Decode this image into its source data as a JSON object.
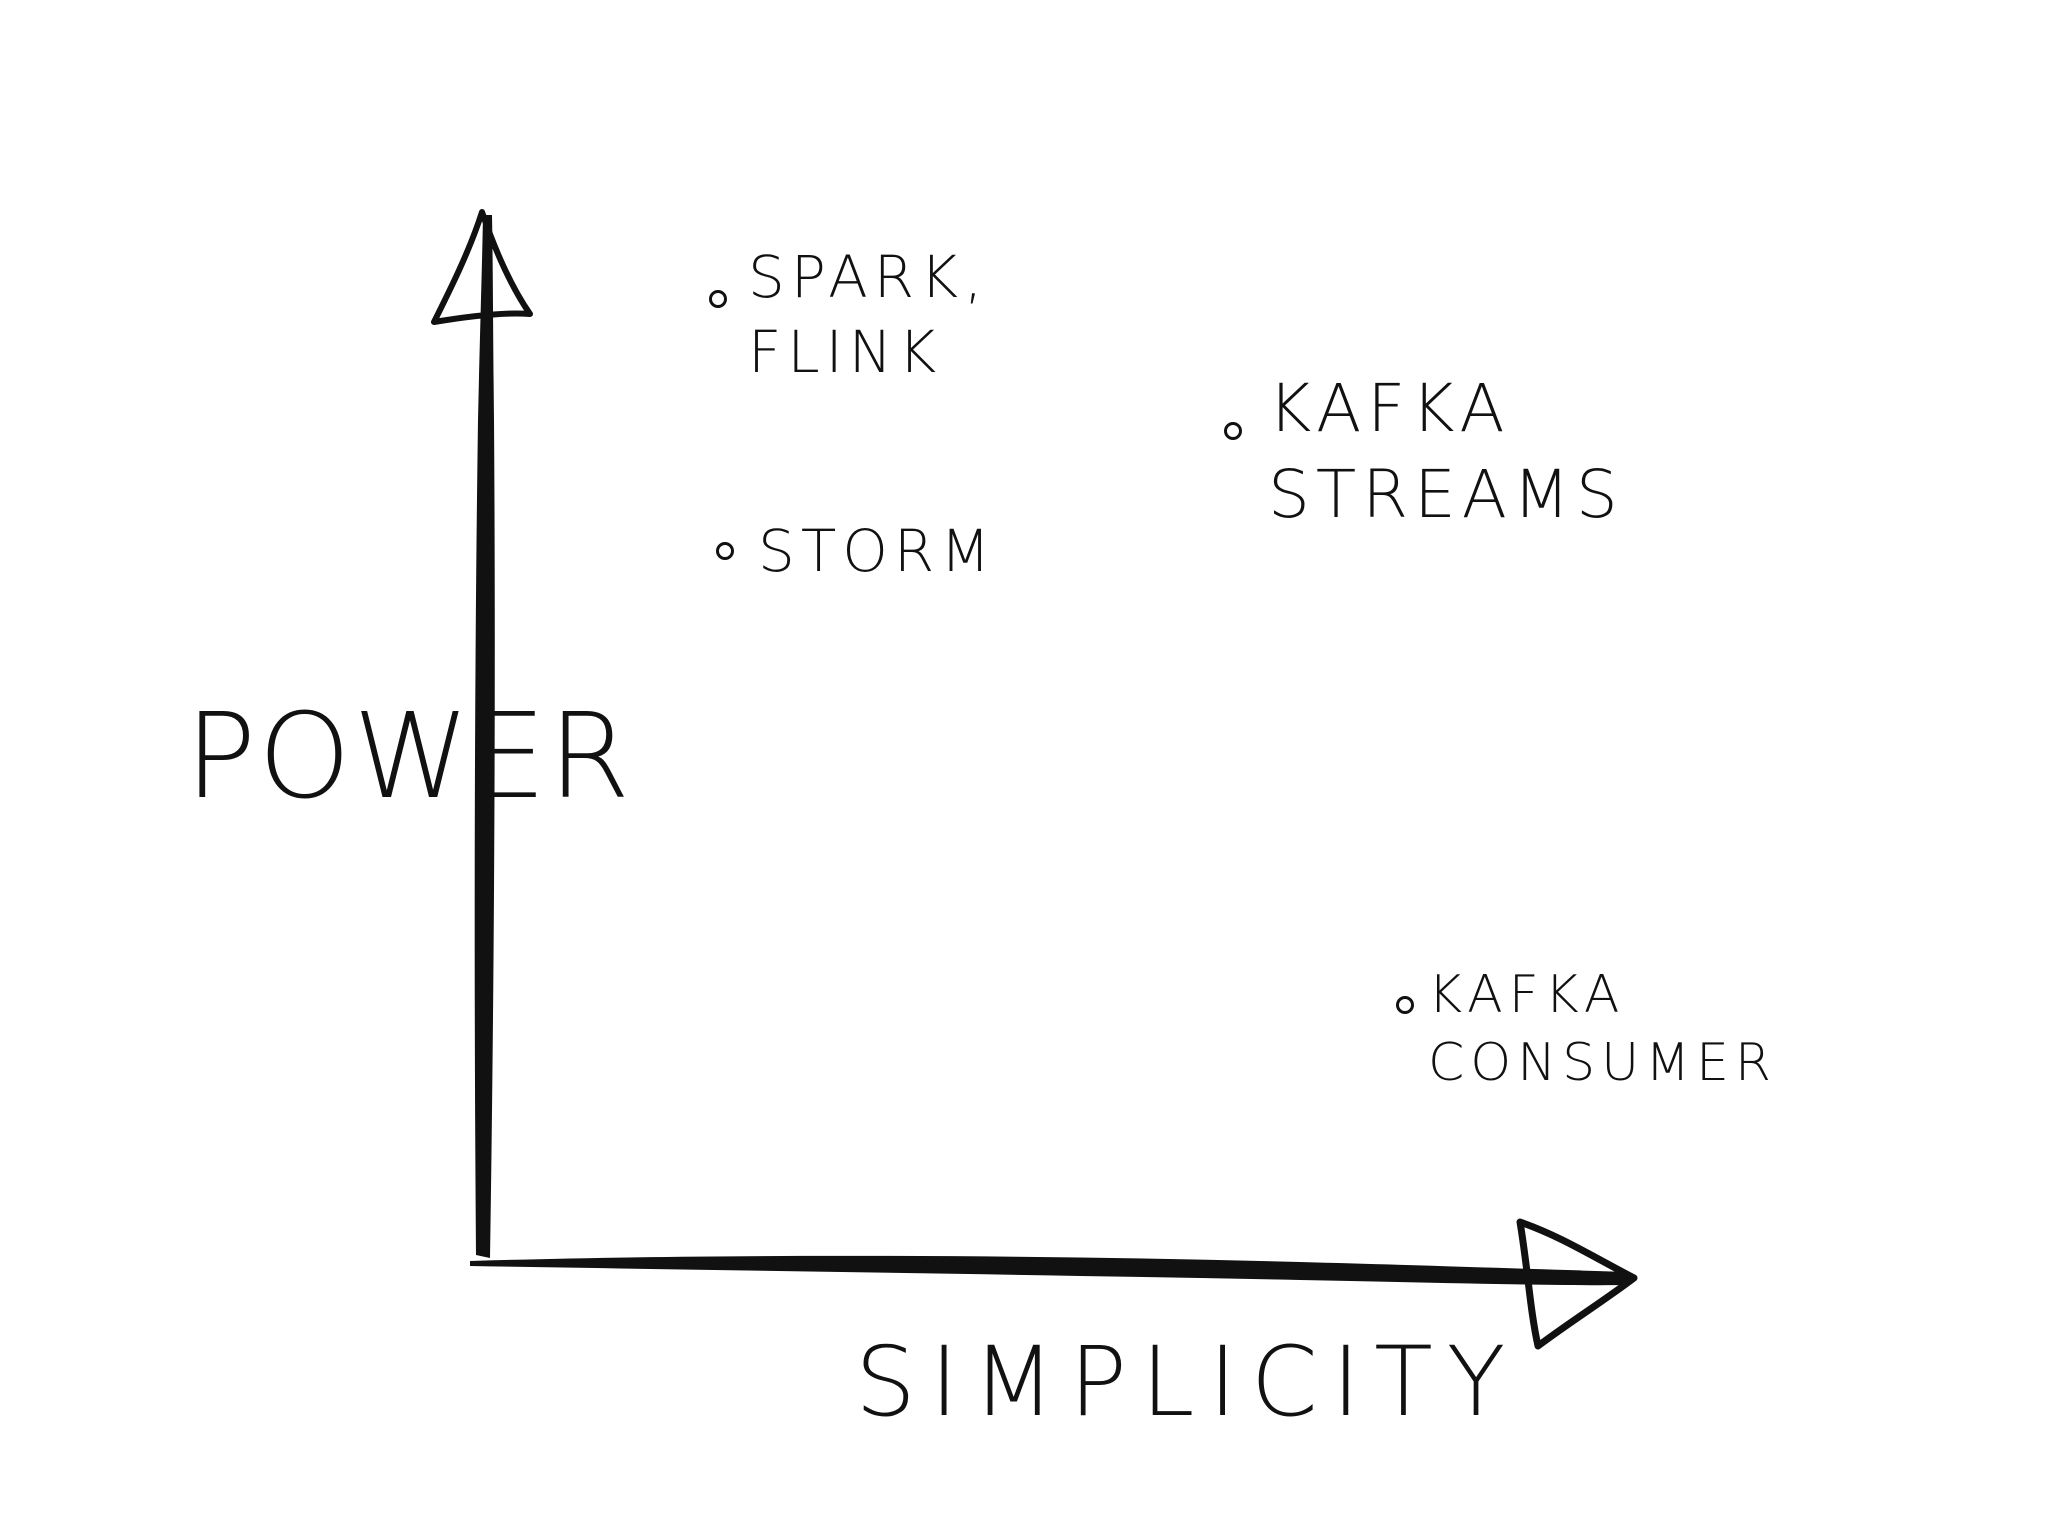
{
  "axes": {
    "y_label": "POWER",
    "x_label": "SIMPLICITY"
  },
  "points": [
    {
      "label": "SPARK,\nFLINK"
    },
    {
      "label": "KAFKA\nSTREAMS"
    },
    {
      "label": "STORM"
    },
    {
      "label": "KAFKA\nCONSUMER"
    }
  ],
  "colors": {
    "ink": "#111111",
    "background": "#ffffff"
  }
}
